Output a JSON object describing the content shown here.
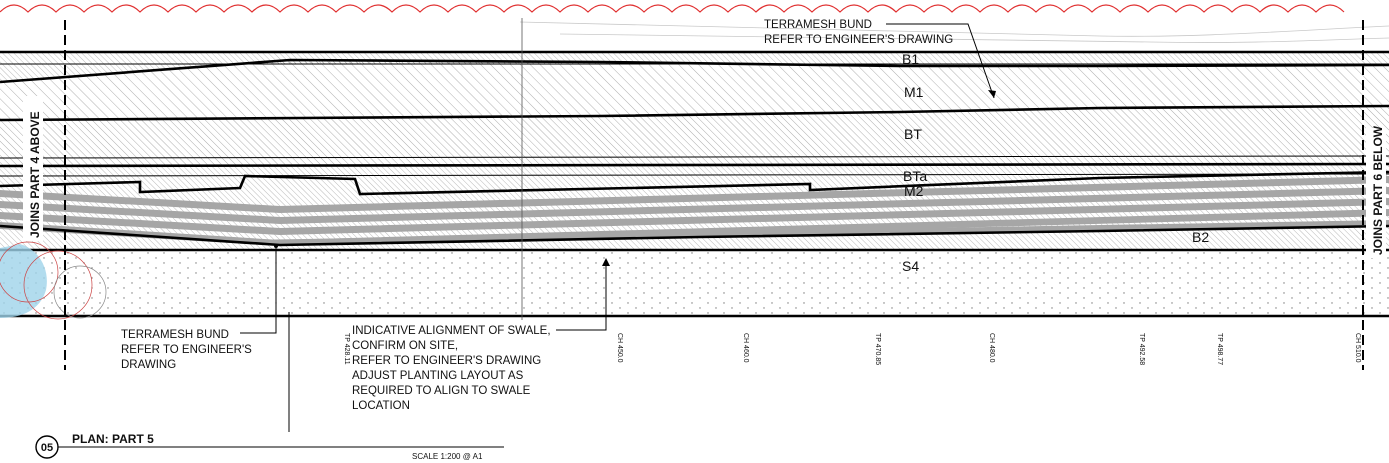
{
  "zones": {
    "b1": "B1",
    "m1": "M1",
    "bt": "BT",
    "bta": "BTa",
    "m2": "M2",
    "b2": "B2",
    "s4": "S4"
  },
  "notes": {
    "terramesh_top": [
      "TERRAMESH BUND",
      "REFER TO ENGINEER'S DRAWING"
    ],
    "terramesh_bottom": [
      "TERRAMESH BUND",
      "REFER TO ENGINEER'S",
      "DRAWING"
    ],
    "swale": [
      "INDICATIVE ALIGNMENT OF SWALE,",
      "CONFIRM ON SITE,",
      "REFER TO ENGINEER'S DRAWING",
      "ADJUST PLANTING LAYOUT AS",
      "REQUIRED TO ALIGN TO SWALE",
      "LOCATION"
    ]
  },
  "joins": {
    "left": "JOINS PART 4 ABOVE",
    "right": "JOINS PART 6 BELOW"
  },
  "chainages": [
    "TP 428.11",
    "CH 450.0",
    "CH 460.0",
    "TP 470.85",
    "CH 480.0",
    "TP 492.58",
    "TP 498.77",
    "CH 510.0"
  ],
  "title_block": {
    "number": "05",
    "title": "PLAN: PART 5",
    "scale": "SCALE  1:200 @ A1"
  },
  "colors": {
    "line": "#000000",
    "hatch": "#9a9a9a",
    "band_fill": "#a6a6a6",
    "cloud": "#e03030",
    "water": "#9fd3ea"
  }
}
